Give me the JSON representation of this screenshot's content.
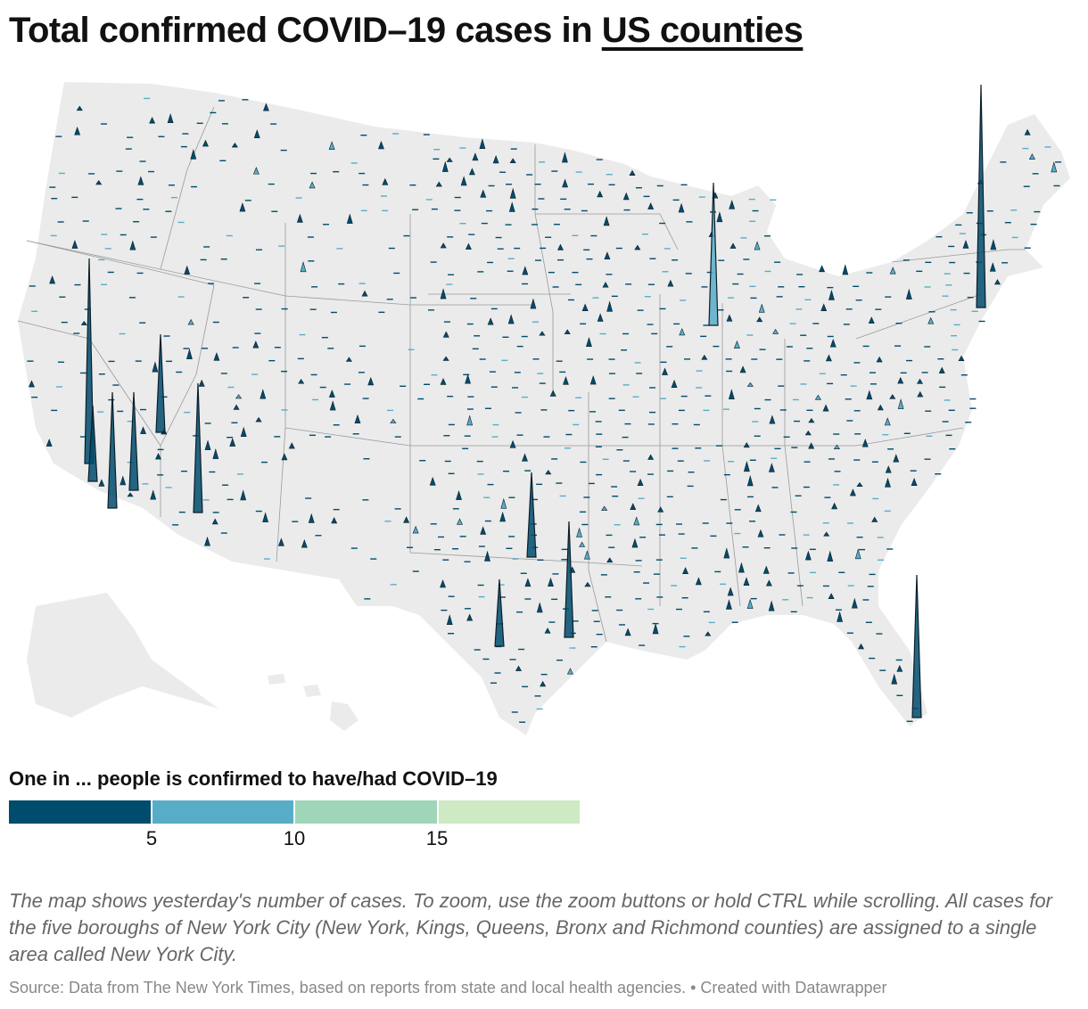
{
  "title": {
    "prefix": "Total confirmed COVID–19 cases in ",
    "link": "US counties"
  },
  "legend": {
    "title": "One in ... people is confirmed to have/had COVID–19",
    "colors": [
      "#004c6d",
      "#57adc8",
      "#9fd6b9",
      "#cdeac3"
    ],
    "ticks": [
      "5",
      "10",
      "15"
    ]
  },
  "note": "The map shows yesterday's number of cases. To zoom, use the zoom buttons or hold CTRL while scrolling. All cases for the five boroughs of New York City (New York, Kings, Queens, Bronx and Richmond counties) are assigned to a single area called New York City.",
  "source": "Source: Data from The New York Times, based on reports from state and local health agencies. • Created with Datawrapper",
  "map_style": {
    "land": "#ebebeb",
    "border": "#9a9a9a",
    "spike_stroke": "#0b1e2a"
  },
  "featured_spikes": [
    {
      "name": "new-york-city",
      "height": 250,
      "shade": 0
    },
    {
      "name": "los-angeles",
      "height": 230,
      "shade": 0
    },
    {
      "name": "chicago",
      "height": 160,
      "shade": 1
    },
    {
      "name": "miami-dade",
      "height": 160,
      "shade": 0
    },
    {
      "name": "houston",
      "height": 130,
      "shade": 0
    },
    {
      "name": "phoenix",
      "height": 145,
      "shade": 0
    },
    {
      "name": "san-bernardino",
      "height": 130,
      "shade": 0
    },
    {
      "name": "riverside",
      "height": 110,
      "shade": 0
    },
    {
      "name": "dallas",
      "height": 95,
      "shade": 0
    },
    {
      "name": "san-antonio",
      "height": 75,
      "shade": 0
    },
    {
      "name": "las-vegas",
      "height": 110,
      "shade": 0
    },
    {
      "name": "san-diego",
      "height": 85,
      "shade": 0
    }
  ]
}
